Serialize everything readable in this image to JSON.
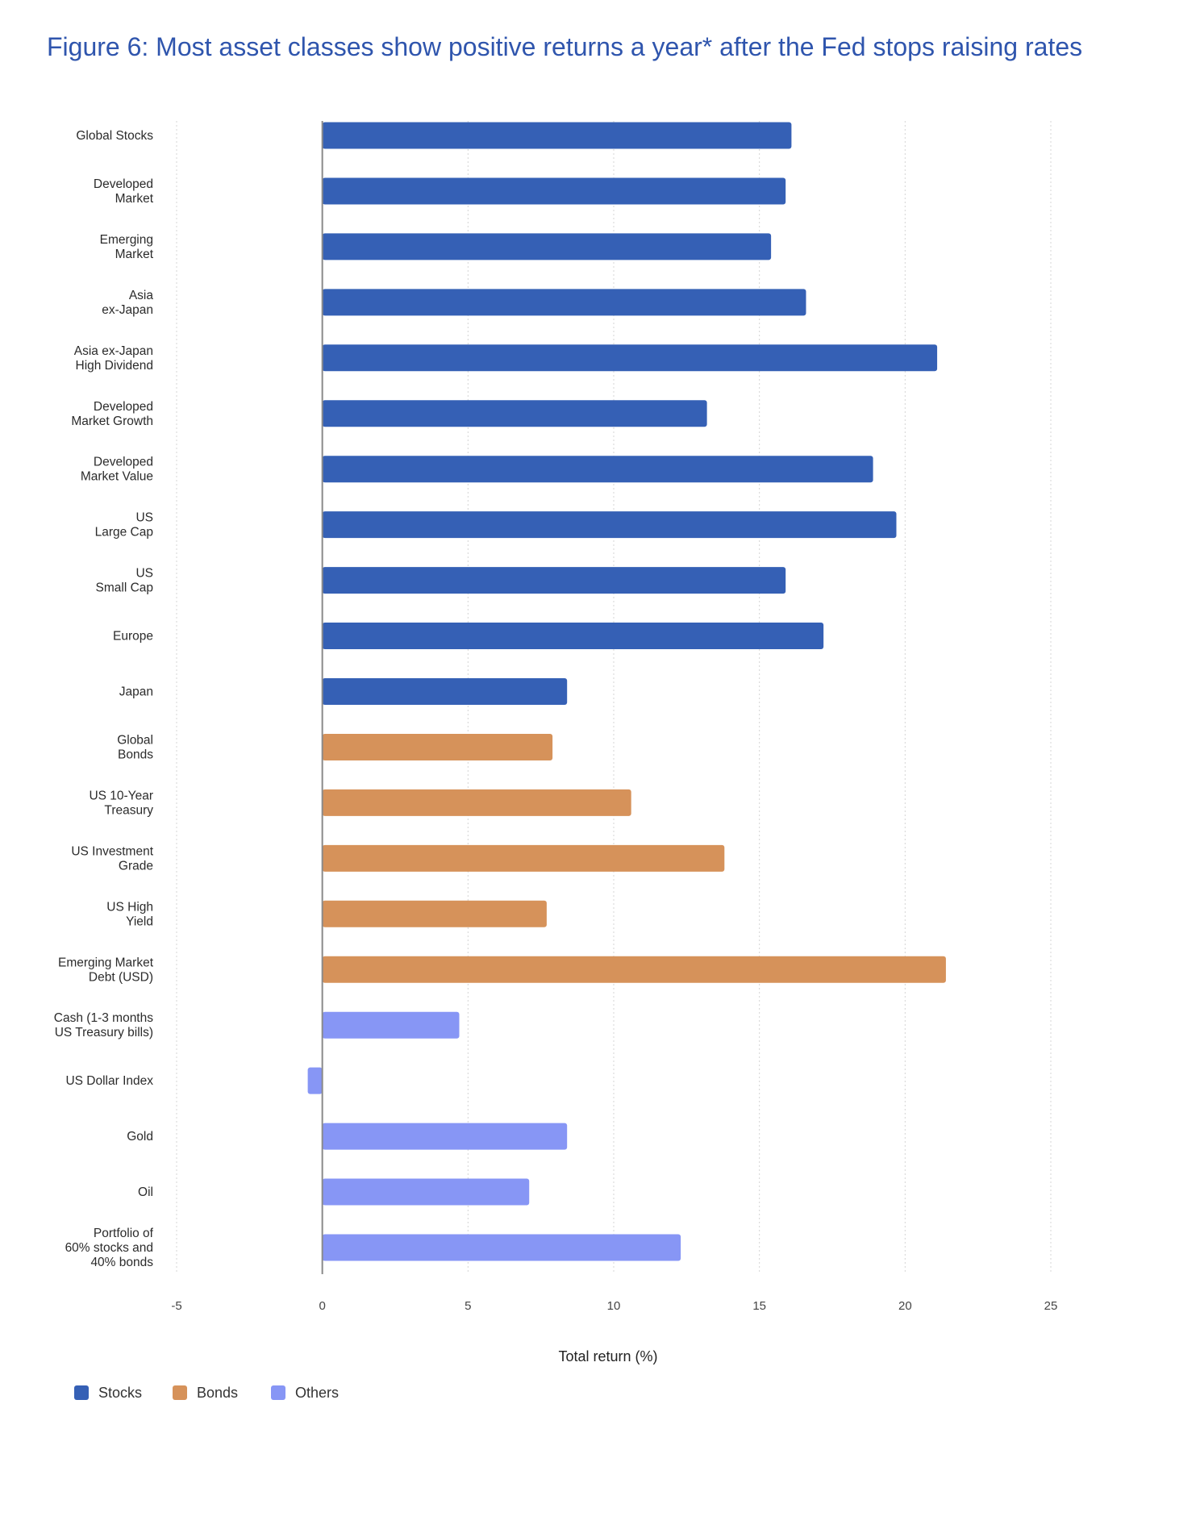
{
  "title": "Figure 6: Most asset classes show positive returns a year* after the Fed stops raising rates",
  "chart_data": {
    "type": "bar",
    "orientation": "horizontal",
    "xlabel": "Total return (%)",
    "xlim": [
      -5,
      25
    ],
    "xticks": [
      -5,
      0,
      5,
      10,
      15,
      20,
      25
    ],
    "grid": "vertical dotted",
    "legend_position": "bottom-left",
    "colors": {
      "Stocks": "#3560b5",
      "Bonds": "#d6925a",
      "Others": "#8796f5"
    },
    "legend": [
      "Stocks",
      "Bonds",
      "Others"
    ],
    "categories": [
      [
        "Global Stocks"
      ],
      [
        "Developed",
        "Market"
      ],
      [
        "Emerging",
        "Market"
      ],
      [
        "Asia",
        "ex-Japan"
      ],
      [
        "Asia ex-Japan",
        "High Dividend"
      ],
      [
        "Developed",
        "Market Growth"
      ],
      [
        "Developed",
        "Market Value"
      ],
      [
        "US",
        "Large Cap"
      ],
      [
        "US",
        "Small Cap"
      ],
      [
        "Europe"
      ],
      [
        "Japan"
      ],
      [
        "Global",
        "Bonds"
      ],
      [
        "US 10-Year",
        "Treasury"
      ],
      [
        "US Investment",
        "Grade"
      ],
      [
        "US High",
        "Yield"
      ],
      [
        "Emerging Market",
        "Debt (USD)"
      ],
      [
        "Cash (1-3 months",
        "US Treasury bills)"
      ],
      [
        "US Dollar Index"
      ],
      [
        "Gold"
      ],
      [
        "Oil"
      ],
      [
        "Portfolio of",
        "60% stocks and",
        "40% bonds"
      ]
    ],
    "values": [
      16.1,
      15.9,
      15.4,
      16.6,
      21.1,
      13.2,
      18.9,
      19.7,
      15.9,
      17.2,
      8.4,
      7.9,
      10.6,
      13.8,
      7.7,
      21.4,
      4.7,
      -0.5,
      8.4,
      7.1,
      12.3
    ],
    "groups": [
      "Stocks",
      "Stocks",
      "Stocks",
      "Stocks",
      "Stocks",
      "Stocks",
      "Stocks",
      "Stocks",
      "Stocks",
      "Stocks",
      "Stocks",
      "Bonds",
      "Bonds",
      "Bonds",
      "Bonds",
      "Bonds",
      "Others",
      "Others",
      "Others",
      "Others",
      "Others"
    ]
  }
}
